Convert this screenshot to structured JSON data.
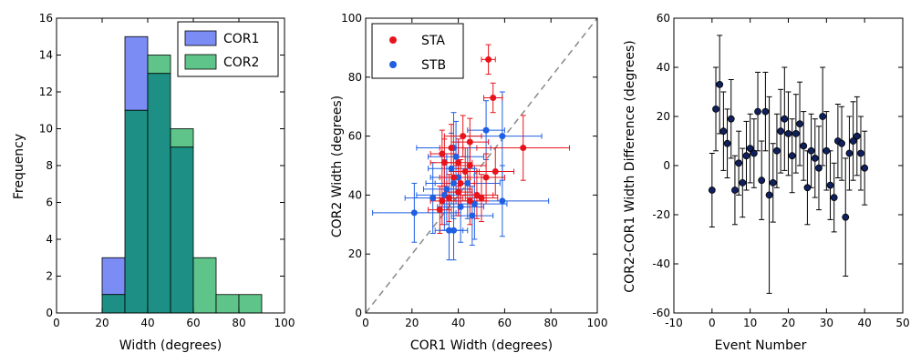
{
  "chart_data": [
    {
      "type": "bar",
      "subtype": "histogram",
      "bin_edges": [
        0,
        10,
        20,
        30,
        40,
        50,
        60,
        70,
        80,
        90,
        100
      ],
      "series": [
        {
          "name": "COR1",
          "values": [
            0,
            0,
            3,
            15,
            13,
            9,
            0,
            0,
            0,
            0
          ],
          "color": "#7b8cf5"
        },
        {
          "name": "COR2",
          "values": [
            0,
            0,
            1,
            11,
            14,
            10,
            3,
            1,
            1,
            0
          ],
          "color": "#5ec489"
        }
      ],
      "overlap_color": "#1d8f84",
      "xlabel": "Width (degrees)",
      "ylabel": "Frequency",
      "xlim": [
        0,
        100
      ],
      "ylim": [
        0,
        16
      ],
      "xticks": [
        0,
        20,
        40,
        60,
        80,
        100
      ],
      "yticks": [
        0,
        2,
        4,
        6,
        8,
        10,
        12,
        14,
        16
      ],
      "legend_position": "top-right",
      "grid": false
    },
    {
      "type": "scatter",
      "xlabel": "COR1 Width (degrees)",
      "ylabel": "COR2 Width (degrees)",
      "xlim": [
        0,
        100
      ],
      "ylim": [
        0,
        100
      ],
      "xticks": [
        0,
        20,
        40,
        60,
        80,
        100
      ],
      "yticks": [
        0,
        20,
        40,
        60,
        80,
        100
      ],
      "reference_line": "y = x (dashed)",
      "legend_position": "top-left",
      "grid": false,
      "series": [
        {
          "name": "STA",
          "color": "#e8141c",
          "points": [
            {
              "x": 53,
              "y": 86,
              "xerr": 3,
              "yerr": 5
            },
            {
              "x": 55,
              "y": 73,
              "xerr": 4,
              "yerr": 5
            },
            {
              "x": 68,
              "y": 56,
              "xerr": 20,
              "yerr": 11
            },
            {
              "x": 56,
              "y": 48,
              "xerr": 8,
              "yerr": 8
            },
            {
              "x": 52,
              "y": 46,
              "xerr": 8,
              "yerr": 8
            },
            {
              "x": 45,
              "y": 58,
              "xerr": 8,
              "yerr": 8
            },
            {
              "x": 42,
              "y": 60,
              "xerr": 8,
              "yerr": 7
            },
            {
              "x": 37,
              "y": 56,
              "xerr": 5,
              "yerr": 8
            },
            {
              "x": 33,
              "y": 54,
              "xerr": 5,
              "yerr": 8
            },
            {
              "x": 34,
              "y": 51,
              "xerr": 6,
              "yerr": 8
            },
            {
              "x": 40,
              "y": 51,
              "xerr": 6,
              "yerr": 8
            },
            {
              "x": 45,
              "y": 50,
              "xerr": 7,
              "yerr": 8
            },
            {
              "x": 43,
              "y": 48,
              "xerr": 6,
              "yerr": 8
            },
            {
              "x": 38,
              "y": 46,
              "xerr": 6,
              "yerr": 8
            },
            {
              "x": 40,
              "y": 41,
              "xerr": 6,
              "yerr": 8
            },
            {
              "x": 36,
              "y": 39,
              "xerr": 6,
              "yerr": 8
            },
            {
              "x": 33,
              "y": 38,
              "xerr": 5,
              "yerr": 8
            },
            {
              "x": 45,
              "y": 38,
              "xerr": 7,
              "yerr": 8
            },
            {
              "x": 48,
              "y": 40,
              "xerr": 7,
              "yerr": 8
            },
            {
              "x": 50,
              "y": 39,
              "xerr": 7,
              "yerr": 8
            },
            {
              "x": 32,
              "y": 35,
              "xerr": 5,
              "yerr": 8
            },
            {
              "x": 41,
              "y": 44,
              "xerr": 6,
              "yerr": 8
            }
          ]
        },
        {
          "name": "STB",
          "color": "#1f5fe3",
          "points": [
            {
              "x": 59,
              "y": 60,
              "xerr": 17,
              "yerr": 15
            },
            {
              "x": 52,
              "y": 62,
              "xerr": 8,
              "yerr": 10
            },
            {
              "x": 38,
              "y": 56,
              "xerr": 16,
              "yerr": 12
            },
            {
              "x": 39,
              "y": 53,
              "xerr": 12,
              "yerr": 12
            },
            {
              "x": 37,
              "y": 49,
              "xerr": 10,
              "yerr": 12
            },
            {
              "x": 40,
              "y": 46,
              "xerr": 12,
              "yerr": 12
            },
            {
              "x": 44,
              "y": 44,
              "xerr": 14,
              "yerr": 12
            },
            {
              "x": 38,
              "y": 44,
              "xerr": 12,
              "yerr": 12
            },
            {
              "x": 34,
              "y": 40,
              "xerr": 12,
              "yerr": 12
            },
            {
              "x": 29,
              "y": 39,
              "xerr": 12,
              "yerr": 12
            },
            {
              "x": 59,
              "y": 38,
              "xerr": 20,
              "yerr": 12
            },
            {
              "x": 47,
              "y": 37,
              "xerr": 14,
              "yerr": 12
            },
            {
              "x": 41,
              "y": 36,
              "xerr": 10,
              "yerr": 12
            },
            {
              "x": 21,
              "y": 34,
              "xerr": 18,
              "yerr": 10
            },
            {
              "x": 46,
              "y": 33,
              "xerr": 9,
              "yerr": 10
            },
            {
              "x": 36,
              "y": 28,
              "xerr": 6,
              "yerr": 10
            },
            {
              "x": 38,
              "y": 28,
              "xerr": 6,
              "yerr": 10
            },
            {
              "x": 35,
              "y": 42,
              "xerr": 10,
              "yerr": 12
            }
          ]
        }
      ]
    },
    {
      "type": "scatter",
      "xlabel": "Event Number",
      "ylabel": "COR2-COR1 Width Difference (degrees)",
      "xlim": [
        -10,
        50
      ],
      "ylim": [
        -60,
        60
      ],
      "xticks": [
        -10,
        0,
        10,
        20,
        30,
        40,
        50
      ],
      "yticks": [
        -60,
        -40,
        -20,
        0,
        20,
        40,
        60
      ],
      "grid": false,
      "series": [
        {
          "color": "#10205e",
          "points": [
            {
              "x": 0,
              "y": -10,
              "yerr": 15
            },
            {
              "x": 1,
              "y": 23,
              "yerr": 17
            },
            {
              "x": 2,
              "y": 33,
              "yerr": 20
            },
            {
              "x": 3,
              "y": 14,
              "yerr": 16
            },
            {
              "x": 4,
              "y": 9,
              "yerr": 14
            },
            {
              "x": 5,
              "y": 19,
              "yerr": 16
            },
            {
              "x": 6,
              "y": -10,
              "yerr": 14
            },
            {
              "x": 7,
              "y": 1,
              "yerr": 13
            },
            {
              "x": 8,
              "y": -7,
              "yerr": 14
            },
            {
              "x": 9,
              "y": 4,
              "yerr": 14
            },
            {
              "x": 10,
              "y": 7,
              "yerr": 14
            },
            {
              "x": 11,
              "y": 5,
              "yerr": 14
            },
            {
              "x": 12,
              "y": 22,
              "yerr": 16
            },
            {
              "x": 13,
              "y": -6,
              "yerr": 16
            },
            {
              "x": 14,
              "y": 22,
              "yerr": 16
            },
            {
              "x": 15,
              "y": -12,
              "yerr": 40
            },
            {
              "x": 16,
              "y": -7,
              "yerr": 16
            },
            {
              "x": 17,
              "y": 6,
              "yerr": 15
            },
            {
              "x": 18,
              "y": 14,
              "yerr": 17
            },
            {
              "x": 19,
              "y": 19,
              "yerr": 21
            },
            {
              "x": 20,
              "y": 13,
              "yerr": 17
            },
            {
              "x": 21,
              "y": 4,
              "yerr": 15
            },
            {
              "x": 22,
              "y": 13,
              "yerr": 16
            },
            {
              "x": 23,
              "y": 17,
              "yerr": 17
            },
            {
              "x": 24,
              "y": 8,
              "yerr": 14
            },
            {
              "x": 25,
              "y": -9,
              "yerr": 15
            },
            {
              "x": 26,
              "y": 6,
              "yerr": 15
            },
            {
              "x": 27,
              "y": 3,
              "yerr": 16
            },
            {
              "x": 28,
              "y": -1,
              "yerr": 17
            },
            {
              "x": 29,
              "y": 20,
              "yerr": 20
            },
            {
              "x": 30,
              "y": 6,
              "yerr": 16
            },
            {
              "x": 31,
              "y": -8,
              "yerr": 14
            },
            {
              "x": 32,
              "y": -13,
              "yerr": 14
            },
            {
              "x": 33,
              "y": 10,
              "yerr": 15
            },
            {
              "x": 34,
              "y": 9,
              "yerr": 15
            },
            {
              "x": 35,
              "y": -21,
              "yerr": 24
            },
            {
              "x": 36,
              "y": 5,
              "yerr": 15
            },
            {
              "x": 37,
              "y": 10,
              "yerr": 16
            },
            {
              "x": 38,
              "y": 12,
              "yerr": 16
            },
            {
              "x": 39,
              "y": 5,
              "yerr": 15
            },
            {
              "x": 40,
              "y": -1,
              "yerr": 15
            }
          ]
        }
      ]
    }
  ]
}
